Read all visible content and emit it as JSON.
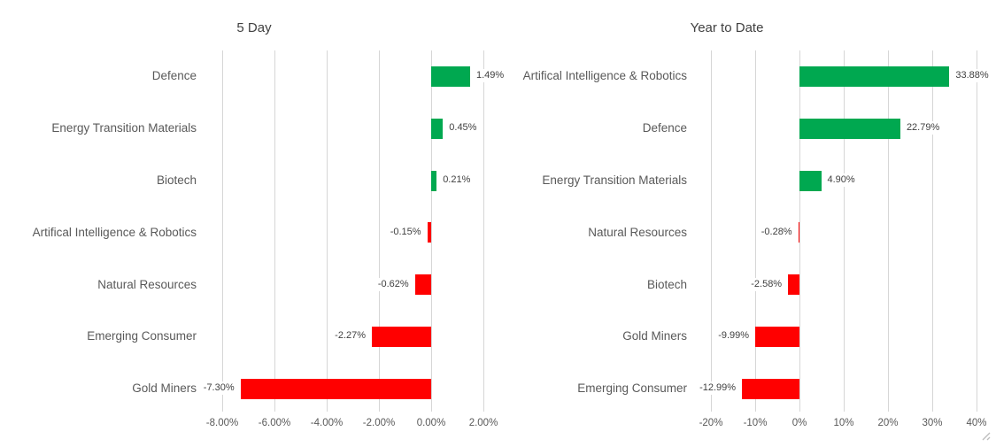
{
  "window": {
    "background": "#FFFFFF"
  },
  "colors": {
    "positive_bar": "#00A850",
    "negative_bar": "#FF0000",
    "gridline": "#D6D6D6",
    "category_text": "#595959",
    "axis_text": "#595959",
    "data_label_text": "#404040",
    "title_text": "#404040",
    "background": "#FFFFFF"
  },
  "chart_data": [
    {
      "type": "bar",
      "orientation": "horizontal-bars",
      "title": "5 Day",
      "categories": [
        "Defence",
        "Energy Transition Materials",
        "Biotech",
        "Artifical Intelligence & Robotics",
        "Natural Resources",
        "Emerging Consumer",
        "Gold Miners"
      ],
      "values": [
        1.49,
        0.45,
        0.21,
        -0.15,
        -0.62,
        -2.27,
        -7.3
      ],
      "data_labels": [
        "1.49%",
        "0.45%",
        "0.21%",
        "-0.15%",
        "-0.62%",
        "-2.27%",
        "-7.30%"
      ],
      "x_ticks": [
        {
          "v": -8,
          "label": "-8.00%"
        },
        {
          "v": -6,
          "label": "-6.00%"
        },
        {
          "v": -4,
          "label": "-4.00%"
        },
        {
          "v": -2,
          "label": "-2.00%"
        },
        {
          "v": 0,
          "label": "0.00%"
        },
        {
          "v": 2,
          "label": "2.00%"
        }
      ],
      "xlim": [
        -9,
        3
      ],
      "xlabel": "",
      "ylabel": "",
      "grid": true,
      "legend": "none"
    },
    {
      "type": "bar",
      "orientation": "horizontal-bars",
      "title": "Year to Date",
      "categories": [
        "Artifical Intelligence & Robotics",
        "Defence",
        "Energy Transition Materials",
        "Natural Resources",
        "Biotech",
        "Gold Miners",
        "Emerging Consumer"
      ],
      "values": [
        33.88,
        22.79,
        4.9,
        -0.28,
        -2.58,
        -9.99,
        -12.99
      ],
      "data_labels": [
        "33.88%",
        "22.79%",
        "4.90%",
        "-0.28%",
        "-2.58%",
        "-9.99%",
        "-12.99%"
      ],
      "x_ticks": [
        {
          "v": -20,
          "label": "-20%"
        },
        {
          "v": -10,
          "label": "-10%"
        },
        {
          "v": 0,
          "label": "0%"
        },
        {
          "v": 10,
          "label": "10%"
        },
        {
          "v": 20,
          "label": "20%"
        },
        {
          "v": 30,
          "label": "30%"
        },
        {
          "v": 40,
          "label": "40%"
        }
      ],
      "xlim": [
        -22.5,
        42.5
      ],
      "xlabel": "",
      "ylabel": "",
      "grid": true,
      "legend": "none"
    }
  ],
  "decorations": {
    "resize_handle_icon": "resize-handle-icon"
  }
}
